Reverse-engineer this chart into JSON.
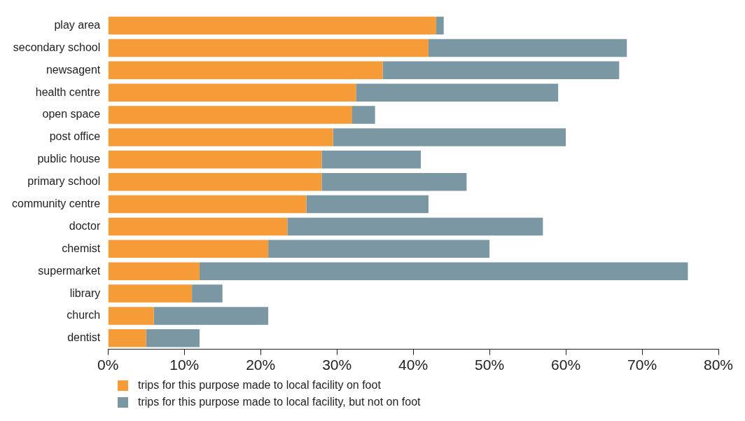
{
  "chart_data": {
    "type": "bar",
    "orientation": "horizontal",
    "stacked": true,
    "categories": [
      "play area",
      "secondary school",
      "newsagent",
      "health centre",
      "open space",
      "post office",
      "public house",
      "primary school",
      "community centre",
      "doctor",
      "chemist",
      "supermarket",
      "library",
      "church",
      "dentist"
    ],
    "series": [
      {
        "name": "trips for this purpose made to local facility on foot",
        "color": "#f59b38",
        "values": [
          43,
          42,
          36,
          32.5,
          32,
          29.5,
          28,
          28,
          26,
          23.5,
          21,
          12,
          11,
          6,
          5
        ]
      },
      {
        "name": "trips for this purpose made to local facility, but not on foot",
        "color": "#7a97a3",
        "values": [
          1,
          26,
          31,
          26.5,
          3,
          30.5,
          13,
          19,
          16,
          33.5,
          29,
          64,
          4,
          15,
          7
        ]
      }
    ],
    "xlim": [
      0,
      80
    ],
    "xticks": [
      {
        "value": 0,
        "label": "0%"
      },
      {
        "value": 10,
        "label": "10%"
      },
      {
        "value": 20,
        "label": "20%"
      },
      {
        "value": 30,
        "label": "30%"
      },
      {
        "value": 40,
        "label": "40%"
      },
      {
        "value": 50,
        "label": "50%"
      },
      {
        "value": 60,
        "label": "60%"
      },
      {
        "value": 70,
        "label": "70%"
      },
      {
        "value": 80,
        "label": "80%"
      }
    ],
    "grid": false,
    "legend": "bottom"
  }
}
